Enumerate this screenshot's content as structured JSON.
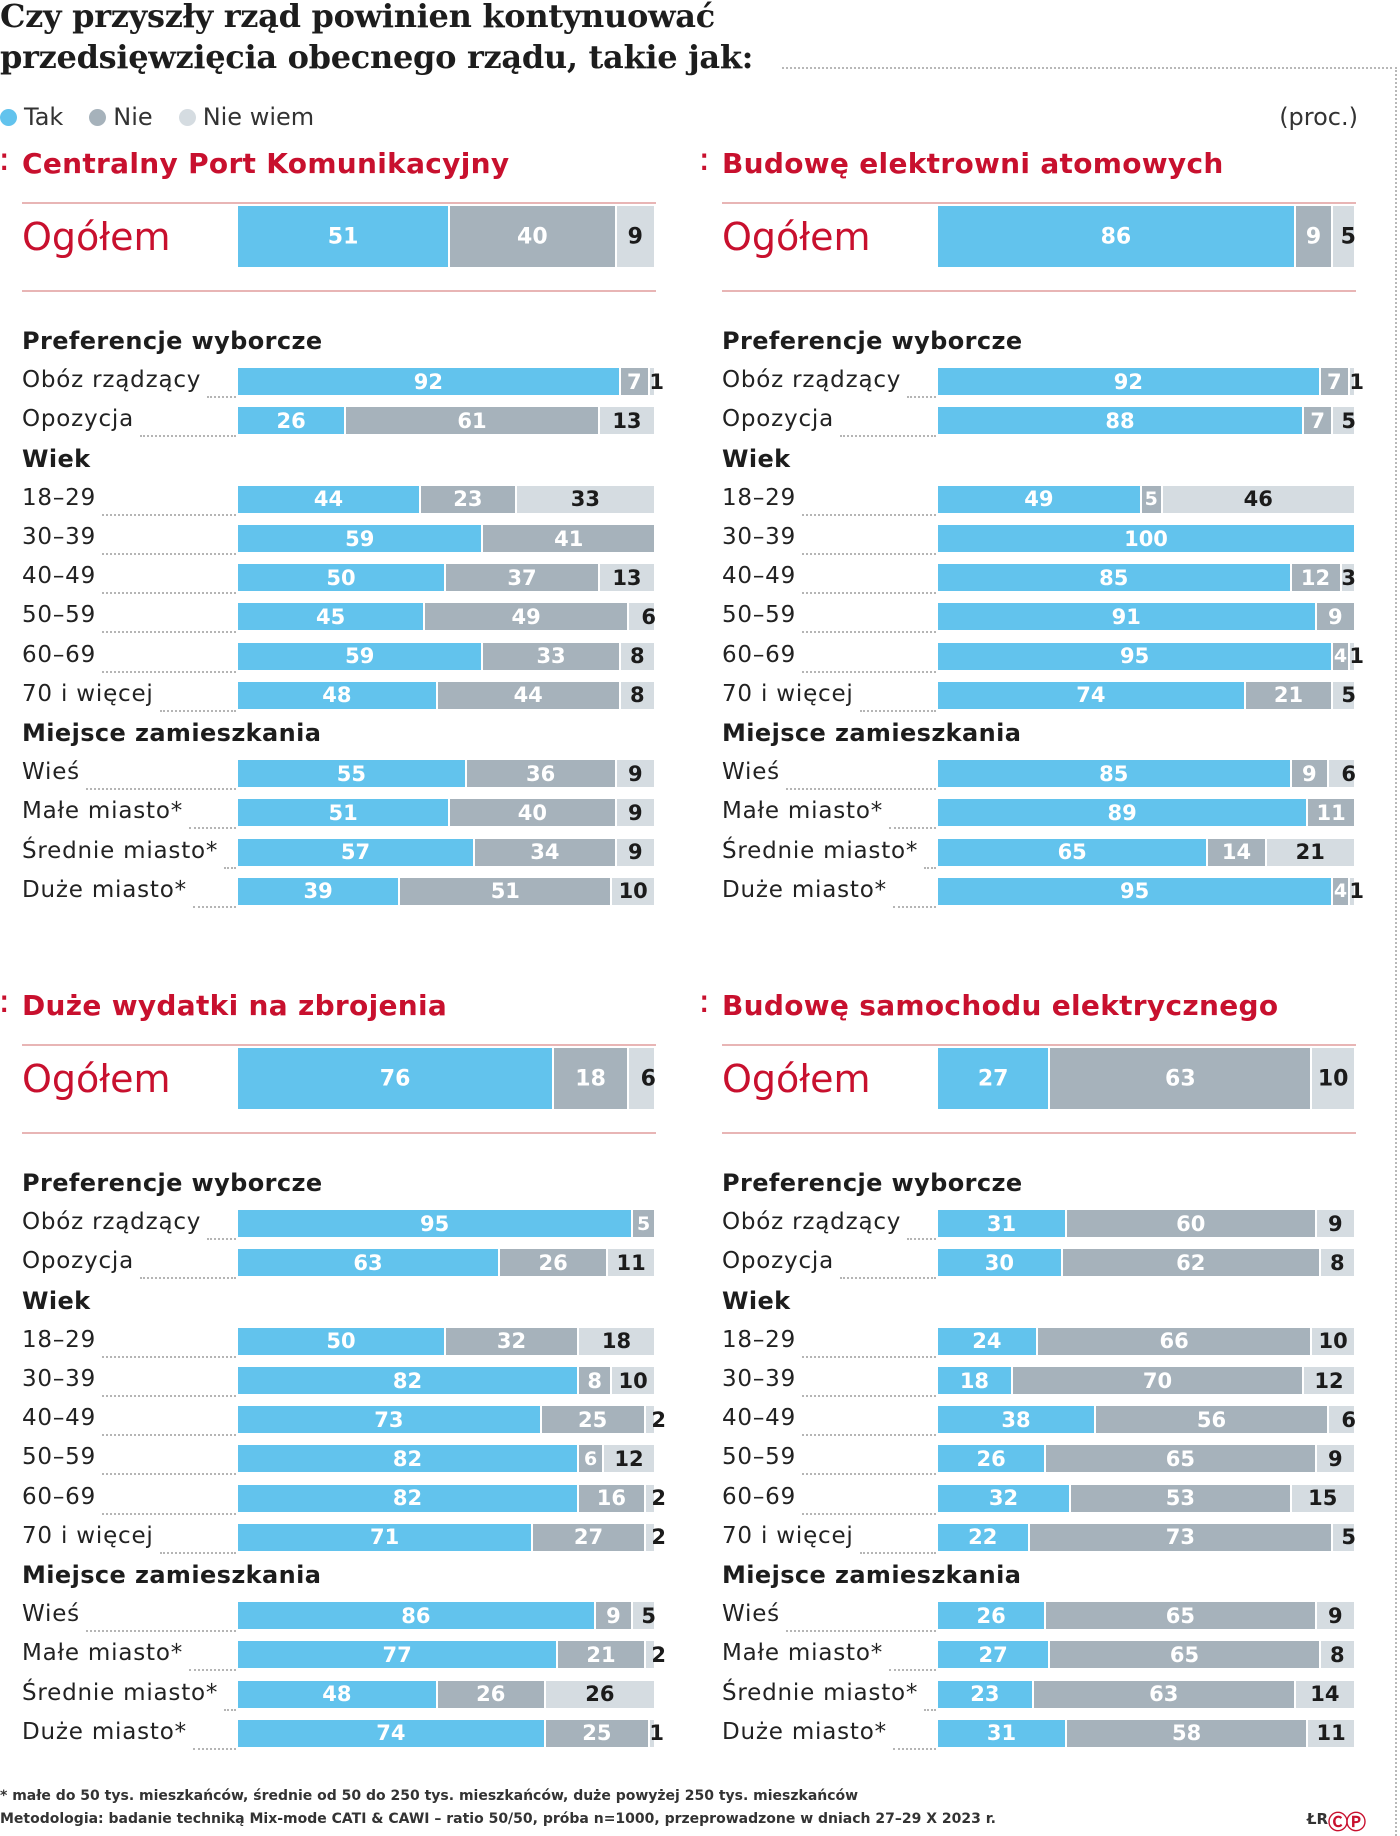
{
  "header": {
    "title_line1": "Czy przyszły rząd powinien kontynuować",
    "title_line2": "przedsięwzięcia obecnego rządu, takie jak:",
    "unit": "(proc.)"
  },
  "legend": [
    {
      "label": "Tak",
      "color": "#62c3ed"
    },
    {
      "label": "Nie",
      "color": "#a6b2bb"
    },
    {
      "label": "Nie wiem",
      "color": "#d5dce1"
    }
  ],
  "panel_glyph": "⁚",
  "total_label": "Ogółem",
  "groups": {
    "pref": "Preferencje wyborcze",
    "age": "Wiek",
    "place": "Miejsce zamieszkania"
  },
  "row_labels": {
    "pref": [
      "Obóz rządzący",
      "Opozycja"
    ],
    "age": [
      "18–29",
      "30–39",
      "40–49",
      "50–59",
      "60–69",
      "70 i więcej"
    ],
    "place": [
      "Wieś",
      "Małe miasto*",
      "Średnie miasto*",
      "Duże miasto*"
    ]
  },
  "chart_data": [
    {
      "type": "bar",
      "title": "Centralny Port Komunikacyjny",
      "stacked": true,
      "series_names": [
        "Tak",
        "Nie",
        "Nie wiem"
      ],
      "total": [
        51,
        40,
        9
      ],
      "pref": [
        [
          92,
          7,
          1
        ],
        [
          26,
          61,
          13
        ]
      ],
      "age": [
        [
          44,
          23,
          33
        ],
        [
          59,
          41,
          0
        ],
        [
          50,
          37,
          13
        ],
        [
          45,
          49,
          6
        ],
        [
          59,
          33,
          8
        ],
        [
          48,
          44,
          8
        ]
      ],
      "place": [
        [
          55,
          36,
          9
        ],
        [
          51,
          40,
          9
        ],
        [
          57,
          34,
          9
        ],
        [
          39,
          51,
          10
        ]
      ]
    },
    {
      "type": "bar",
      "title": "Budowę elektrowni atomowych",
      "stacked": true,
      "series_names": [
        "Tak",
        "Nie",
        "Nie wiem"
      ],
      "total": [
        86,
        9,
        5
      ],
      "pref": [
        [
          92,
          7,
          1
        ],
        [
          88,
          7,
          5
        ]
      ],
      "age": [
        [
          49,
          5,
          46
        ],
        [
          100,
          0,
          0
        ],
        [
          85,
          12,
          3
        ],
        [
          91,
          9,
          0
        ],
        [
          95,
          4,
          1
        ],
        [
          74,
          21,
          5
        ]
      ],
      "place": [
        [
          85,
          9,
          6
        ],
        [
          89,
          11,
          0
        ],
        [
          65,
          14,
          21
        ],
        [
          95,
          4,
          1
        ]
      ]
    },
    {
      "type": "bar",
      "title": "Duże wydatki na zbrojenia",
      "stacked": true,
      "series_names": [
        "Tak",
        "Nie",
        "Nie wiem"
      ],
      "total": [
        76,
        18,
        6
      ],
      "pref": [
        [
          95,
          5,
          0
        ],
        [
          63,
          26,
          11
        ]
      ],
      "age": [
        [
          50,
          32,
          18
        ],
        [
          82,
          8,
          10
        ],
        [
          73,
          25,
          2
        ],
        [
          82,
          6,
          12
        ],
        [
          82,
          16,
          2
        ],
        [
          71,
          27,
          2
        ]
      ],
      "place": [
        [
          86,
          9,
          5
        ],
        [
          77,
          21,
          2
        ],
        [
          48,
          26,
          26
        ],
        [
          74,
          25,
          1
        ]
      ]
    },
    {
      "type": "bar",
      "title": "Budowę samochodu elektrycznego",
      "stacked": true,
      "series_names": [
        "Tak",
        "Nie",
        "Nie wiem"
      ],
      "total": [
        27,
        63,
        10
      ],
      "pref": [
        [
          31,
          60,
          9
        ],
        [
          30,
          62,
          8
        ]
      ],
      "age": [
        [
          24,
          66,
          10
        ],
        [
          18,
          70,
          12
        ],
        [
          38,
          56,
          6
        ],
        [
          26,
          65,
          9
        ],
        [
          32,
          53,
          15
        ],
        [
          22,
          73,
          5
        ]
      ],
      "place": [
        [
          26,
          65,
          9
        ],
        [
          27,
          65,
          8
        ],
        [
          23,
          63,
          14
        ],
        [
          31,
          58,
          11
        ]
      ]
    }
  ],
  "footer": {
    "footnote": "* małe do 50 tys. mieszkańców, średnie od 50 do 250 tys. mieszkańców, duże powyżej 250 tys. mieszkańców",
    "method": "Metodologia: badanie techniką Mix-mode CATI & CAWI – ratio 50/50, próba n=1000, przeprowadzone w dniach 27–29 X 2023 r.",
    "credit": "ŁR",
    "logo": "ⒸⓅ"
  }
}
